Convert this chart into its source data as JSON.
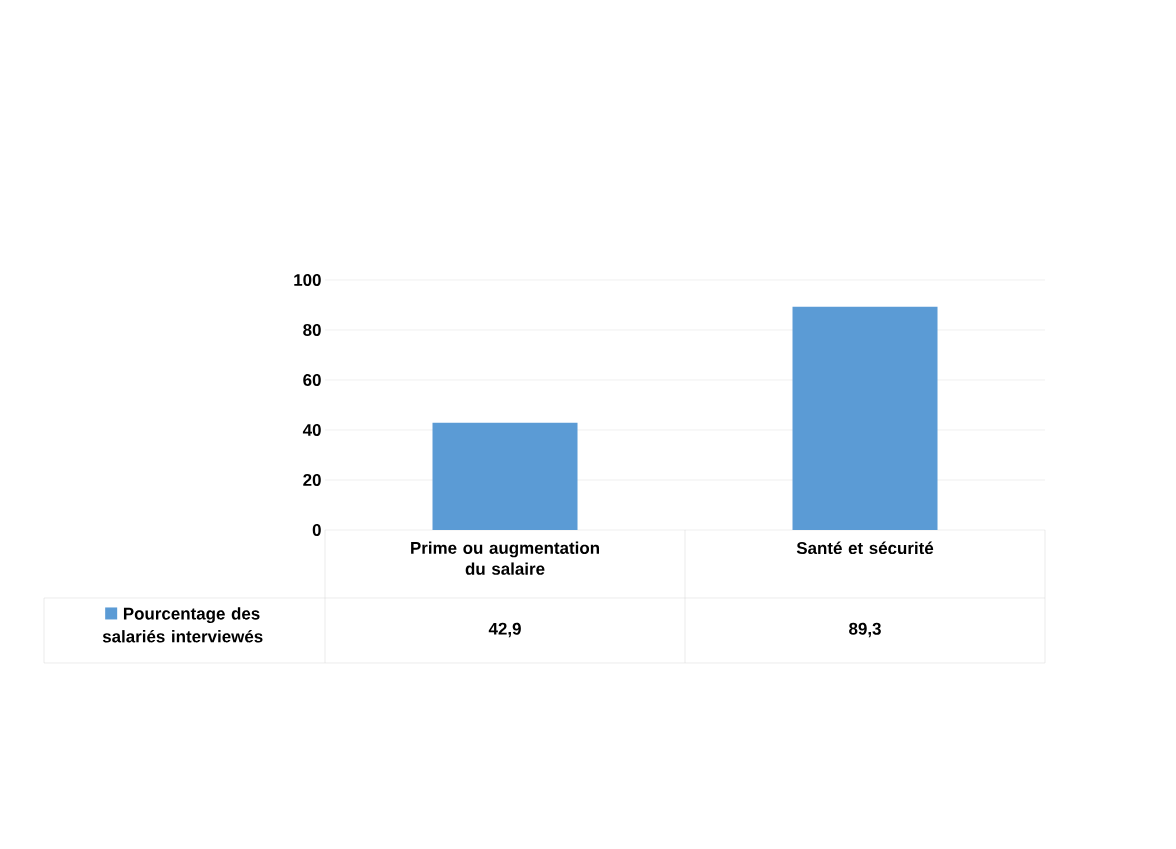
{
  "chart_data": {
    "type": "bar",
    "categories": [
      "Prime ou augmentation du salaire",
      "Santé et sécurité"
    ],
    "series": [
      {
        "name": "Pourcentage des salariés interviewés",
        "color": "#5b9bd5",
        "values": [
          42.9,
          89.3
        ],
        "value_labels": [
          "42,9",
          "89,3"
        ]
      }
    ],
    "ylim": [
      0,
      100
    ],
    "yticks": [
      0,
      20,
      40,
      60,
      80,
      100
    ],
    "grid": "y",
    "legend": "bottom left"
  }
}
